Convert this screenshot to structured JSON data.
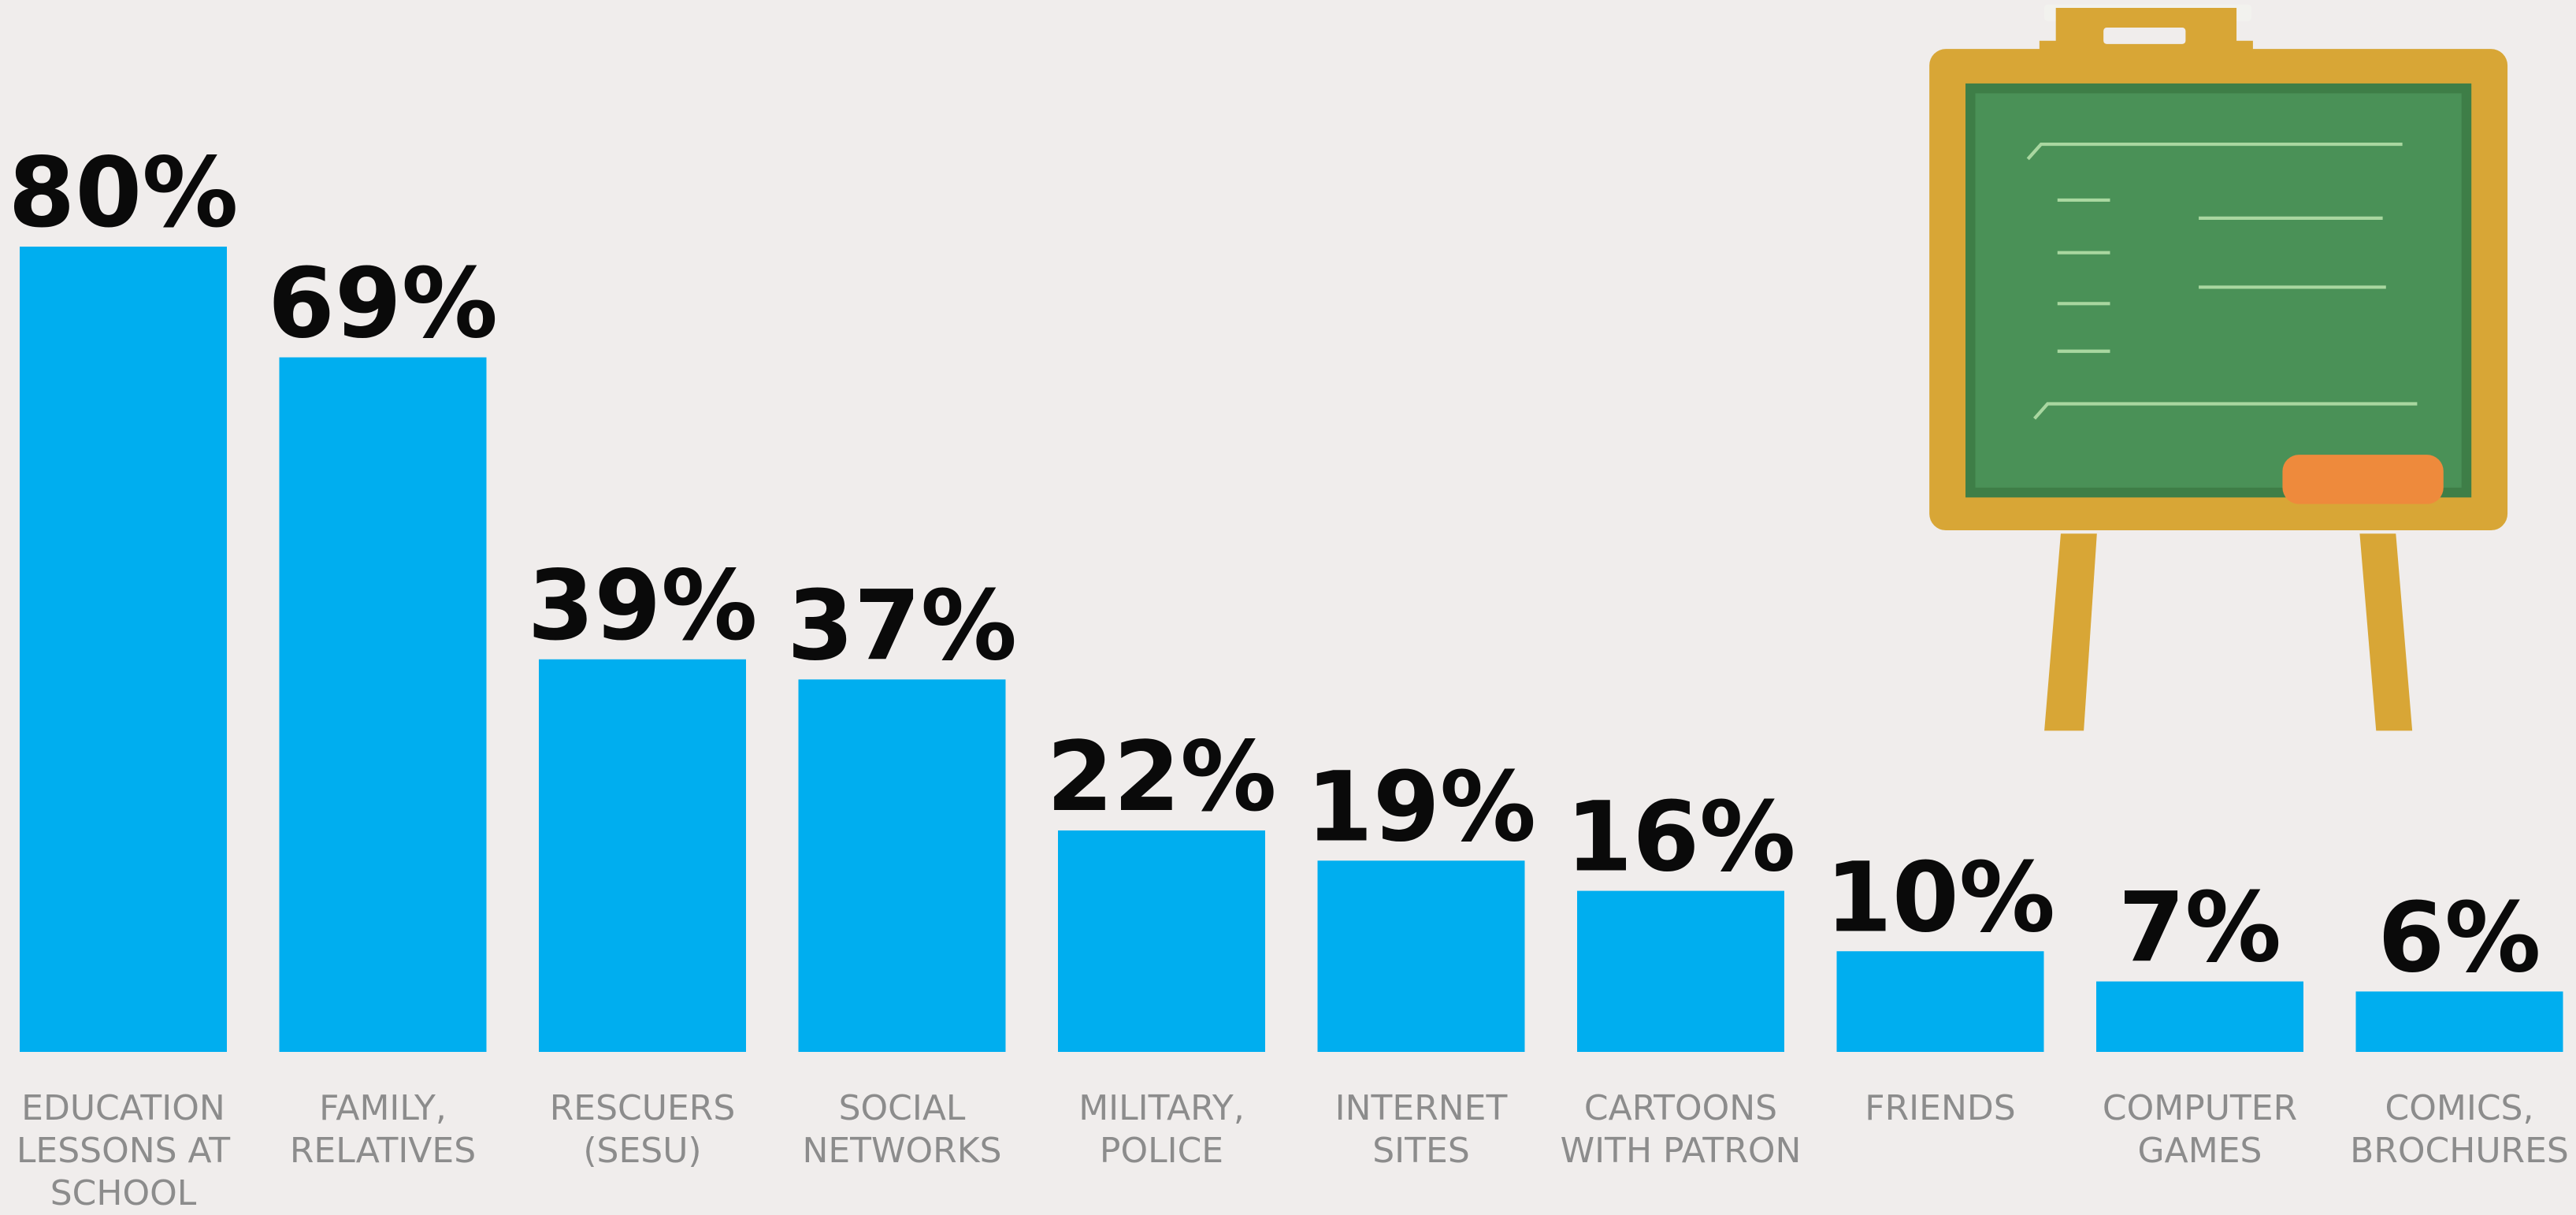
{
  "chart_data": {
    "type": "bar",
    "categories": [
      "EDUCATION\nLESSONS AT\nSCHOOL",
      "FAMILY,\nRELATIVES",
      "RESCUERS\n(SESU)",
      "SOCIAL\nNETWORKS",
      "MILITARY,\nPOLICE",
      "INTERNET\nSITES",
      "CARTOONS\nWITH PATRON",
      "FRIENDS",
      "COMPUTER\nGAMES",
      "COMICS,\nBROCHURES"
    ],
    "values": [
      80,
      69,
      39,
      37,
      22,
      19,
      16,
      10,
      7,
      6
    ],
    "value_labels": [
      "80%",
      "69%",
      "39%",
      "37%",
      "22%",
      "19%",
      "16%",
      "10%",
      "7%",
      "6%"
    ],
    "color": "#00aeef"
  }
}
